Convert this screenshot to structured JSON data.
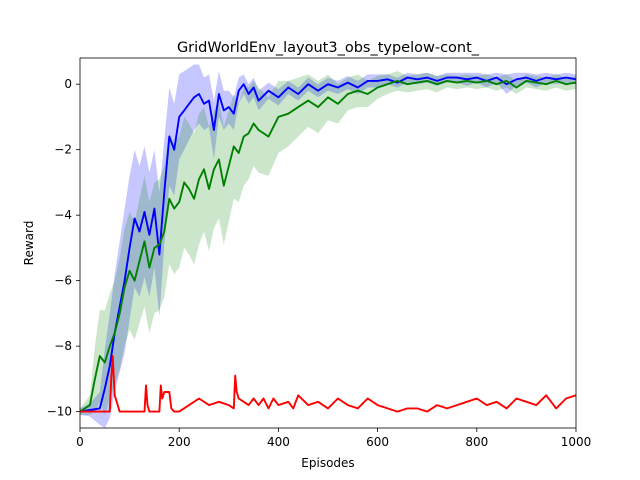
{
  "chart_data": {
    "type": "line",
    "title": "GridWorldEnv_layout3_obs_typelow-cont_",
    "xlabel": "Episodes",
    "ylabel": "Reward",
    "xlim": [
      0,
      1000
    ],
    "ylim": [
      -10.5,
      0.8
    ],
    "xticks": [
      0,
      200,
      400,
      600,
      800,
      1000
    ],
    "yticks": [
      0,
      -2,
      -4,
      -6,
      -8,
      -10
    ],
    "grid": false,
    "legend": false,
    "series": [
      {
        "color": "#0000ff",
        "band_color": "#0000ff",
        "band_opacity": 0.22,
        "x": [
          0,
          20,
          40,
          50,
          60,
          70,
          80,
          90,
          100,
          110,
          120,
          130,
          140,
          150,
          160,
          170,
          180,
          190,
          200,
          210,
          220,
          230,
          240,
          250,
          260,
          270,
          280,
          290,
          300,
          310,
          320,
          330,
          340,
          350,
          360,
          380,
          400,
          420,
          440,
          460,
          480,
          500,
          520,
          540,
          560,
          580,
          600,
          620,
          640,
          660,
          680,
          700,
          720,
          740,
          760,
          780,
          800,
          820,
          840,
          860,
          880,
          900,
          920,
          940,
          960,
          980,
          1000
        ],
        "y": [
          -10.0,
          -9.95,
          -9.9,
          -9.3,
          -8.6,
          -7.6,
          -6.8,
          -6.0,
          -5.0,
          -4.1,
          -4.5,
          -3.9,
          -4.6,
          -3.8,
          -5.2,
          -3.3,
          -1.6,
          -2.0,
          -1.0,
          -0.8,
          -0.6,
          -0.4,
          -0.3,
          -0.6,
          -0.5,
          -1.4,
          -0.3,
          -0.8,
          -0.7,
          -0.9,
          -0.2,
          0.0,
          -0.3,
          -0.1,
          -0.5,
          -0.2,
          -0.4,
          -0.1,
          -0.3,
          0.0,
          -0.2,
          0.0,
          -0.1,
          0.05,
          -0.1,
          0.1,
          0.1,
          0.15,
          0.05,
          0.2,
          0.15,
          0.2,
          0.1,
          0.2,
          0.2,
          0.15,
          0.2,
          0.1,
          0.2,
          0.0,
          0.15,
          0.2,
          0.1,
          0.2,
          0.15,
          0.2,
          0.15
        ],
        "spread": [
          0.1,
          0.2,
          0.5,
          1.2,
          1.6,
          1.8,
          2.0,
          2.2,
          2.2,
          2.1,
          2.0,
          2.0,
          1.9,
          1.8,
          1.9,
          1.6,
          1.5,
          1.4,
          1.3,
          1.2,
          1.1,
          1.0,
          0.9,
          0.8,
          0.8,
          0.9,
          0.7,
          0.6,
          0.5,
          0.5,
          0.4,
          0.3,
          0.3,
          0.3,
          0.3,
          0.25,
          0.25,
          0.2,
          0.2,
          0.2,
          0.2,
          0.2,
          0.2,
          0.2,
          0.2,
          0.2,
          0.2,
          0.15,
          0.15,
          0.15,
          0.15,
          0.15,
          0.15,
          0.15,
          0.15,
          0.2,
          0.15,
          0.2,
          0.15,
          0.3,
          0.2,
          0.15,
          0.2,
          0.15,
          0.15,
          0.15,
          0.15
        ]
      },
      {
        "color": "#008000",
        "band_color": "#008000",
        "band_opacity": 0.2,
        "x": [
          0,
          20,
          30,
          40,
          50,
          60,
          70,
          80,
          90,
          100,
          110,
          120,
          130,
          140,
          150,
          160,
          170,
          180,
          190,
          200,
          210,
          220,
          230,
          240,
          250,
          260,
          270,
          280,
          290,
          300,
          310,
          320,
          330,
          340,
          350,
          360,
          380,
          400,
          420,
          440,
          460,
          480,
          500,
          520,
          540,
          560,
          580,
          600,
          620,
          640,
          660,
          680,
          700,
          720,
          740,
          760,
          780,
          800,
          820,
          840,
          860,
          880,
          900,
          920,
          940,
          960,
          980,
          1000
        ],
        "y": [
          -10.0,
          -9.8,
          -9.0,
          -8.3,
          -8.5,
          -8.0,
          -7.6,
          -7.0,
          -6.2,
          -5.7,
          -6.0,
          -5.4,
          -4.8,
          -5.6,
          -5.0,
          -4.9,
          -4.5,
          -3.5,
          -3.8,
          -3.6,
          -3.0,
          -3.2,
          -3.5,
          -2.9,
          -2.6,
          -3.2,
          -2.6,
          -2.3,
          -3.1,
          -2.5,
          -1.9,
          -2.1,
          -1.6,
          -1.5,
          -1.2,
          -1.4,
          -1.6,
          -1.0,
          -0.9,
          -0.7,
          -0.5,
          -0.7,
          -0.4,
          -0.6,
          -0.3,
          -0.2,
          -0.3,
          -0.1,
          0.0,
          0.1,
          0.0,
          0.05,
          0.1,
          0.0,
          0.1,
          0.05,
          0.1,
          0.05,
          0.1,
          0.0,
          0.1,
          -0.1,
          0.1,
          0.05,
          0.0,
          0.1,
          0.0,
          0.05
        ],
        "spread": [
          0.1,
          0.3,
          1.0,
          1.4,
          1.6,
          1.6,
          1.6,
          1.7,
          1.8,
          1.8,
          1.8,
          1.9,
          2.0,
          2.0,
          2.0,
          2.0,
          2.0,
          2.0,
          2.0,
          2.0,
          2.0,
          2.0,
          2.0,
          2.0,
          1.9,
          1.9,
          1.8,
          1.8,
          1.8,
          1.7,
          1.6,
          1.5,
          1.5,
          1.4,
          1.3,
          1.3,
          1.2,
          1.1,
          1.0,
          0.9,
          0.8,
          0.8,
          0.7,
          0.6,
          0.5,
          0.5,
          0.4,
          0.35,
          0.3,
          0.3,
          0.25,
          0.25,
          0.25,
          0.25,
          0.2,
          0.2,
          0.2,
          0.2,
          0.2,
          0.2,
          0.2,
          0.2,
          0.2,
          0.2,
          0.2,
          0.2,
          0.2,
          0.2
        ]
      },
      {
        "color": "#ff0000",
        "band_color": "#ff0000",
        "band_opacity": 0.0,
        "x": [
          0,
          60,
          63,
          66,
          70,
          80,
          130,
          133,
          136,
          140,
          160,
          163,
          166,
          170,
          180,
          184,
          190,
          200,
          220,
          240,
          260,
          280,
          300,
          310,
          313,
          316,
          320,
          340,
          350,
          360,
          370,
          380,
          390,
          400,
          420,
          430,
          440,
          460,
          480,
          500,
          520,
          540,
          560,
          580,
          600,
          620,
          640,
          660,
          680,
          700,
          720,
          740,
          760,
          780,
          800,
          820,
          840,
          860,
          880,
          900,
          920,
          940,
          960,
          980,
          1000
        ],
        "y": [
          -10.0,
          -10.0,
          -9.0,
          -8.3,
          -9.5,
          -10.0,
          -10.0,
          -9.2,
          -9.8,
          -10.0,
          -10.0,
          -9.2,
          -9.6,
          -9.4,
          -9.4,
          -9.9,
          -10.0,
          -10.0,
          -9.8,
          -9.6,
          -9.8,
          -9.7,
          -9.8,
          -9.9,
          -8.9,
          -9.4,
          -9.6,
          -9.8,
          -9.6,
          -9.8,
          -9.6,
          -9.9,
          -9.6,
          -9.8,
          -9.7,
          -9.9,
          -9.5,
          -9.8,
          -9.7,
          -9.9,
          -9.6,
          -9.8,
          -9.9,
          -9.6,
          -9.8,
          -9.9,
          -10.0,
          -9.9,
          -9.9,
          -10.0,
          -9.8,
          -9.9,
          -9.8,
          -9.7,
          -9.6,
          -9.8,
          -9.7,
          -9.9,
          -9.6,
          -9.7,
          -9.8,
          -9.5,
          -9.9,
          -9.6,
          -9.5
        ],
        "spread": []
      }
    ]
  }
}
